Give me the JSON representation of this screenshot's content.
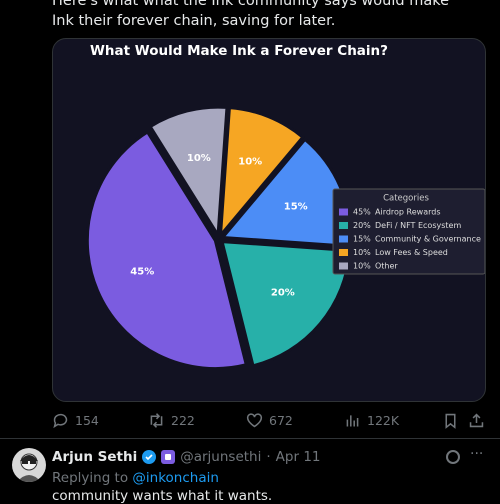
{
  "tweet": {
    "text": "Here's what what the Ink community says would make Ink their forever chain, saving for later."
  },
  "chart_data": {
    "type": "pie",
    "title": "What Would Make Ink a Forever Chain?",
    "categories": [
      "Airdrop Rewards",
      "DeFi / NFT Ecosystem",
      "Community & Governance",
      "Low Fees & Speed",
      "Other"
    ],
    "values": [
      45,
      20,
      15,
      10,
      10
    ],
    "value_labels": [
      "45%",
      "20%",
      "15%",
      "10%",
      "10%"
    ],
    "colors": [
      "#7b5ce0",
      "#27b0a9",
      "#4c8df6",
      "#f6a623",
      "#a8a8c0"
    ],
    "legend_title": "Categories",
    "legend": "right"
  },
  "actions": {
    "replies": "154",
    "reposts": "222",
    "likes": "672",
    "views": "122K"
  },
  "reply": {
    "name": "Arjun Sethi",
    "handle": "@arjunsethi",
    "date": "Apr 11",
    "replying_label": "Replying to",
    "replying_to": "@inkonchain",
    "text": "community wants what it wants."
  }
}
